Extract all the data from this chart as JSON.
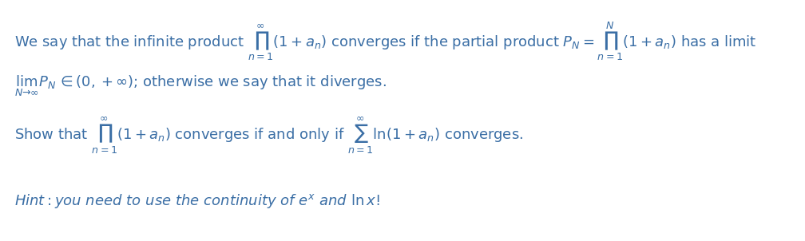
{
  "background_color": "#ffffff",
  "text_color": "#3a6ea5",
  "figsize": [
    10.08,
    3.02
  ],
  "dpi": 100,
  "font_size": 13.0
}
